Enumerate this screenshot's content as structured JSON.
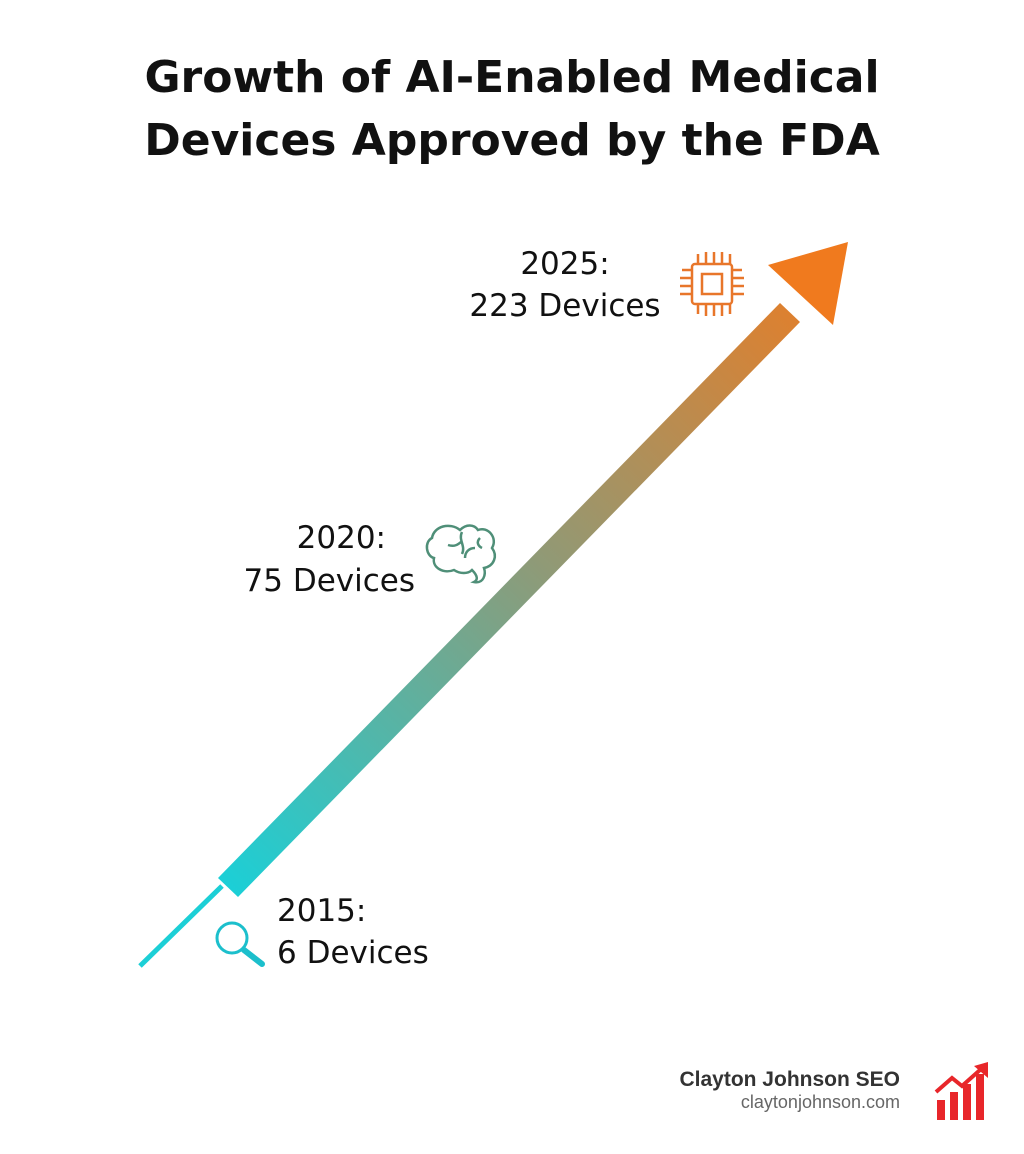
{
  "title": [
    "Growth of AI-Enabled Medical",
    "Devices Approved by the FDA"
  ],
  "milestones": [
    {
      "year": "2025:",
      "count": "223 Devices"
    },
    {
      "year": "2020:",
      "count": "75 Devices"
    },
    {
      "year": "2015:",
      "count": "6 Devices"
    }
  ],
  "brand": {
    "name": "Clayton Johnson SEO",
    "url": "claytonjohnson.com"
  }
}
